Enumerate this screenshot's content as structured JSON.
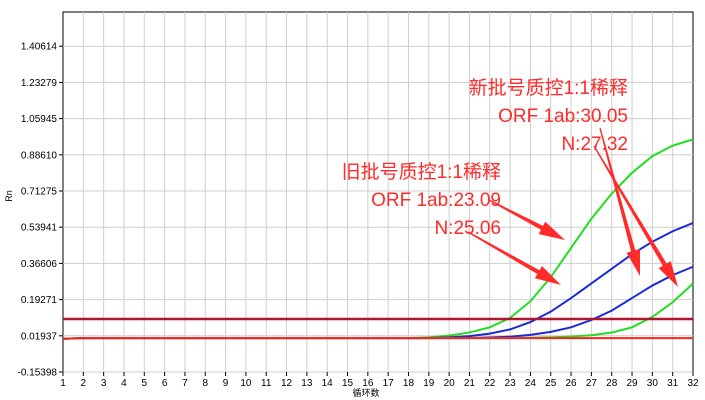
{
  "chart_data": {
    "type": "line",
    "title": "",
    "xlabel": "循环数",
    "ylabel": "Rn",
    "x": [
      1,
      2,
      3,
      4,
      5,
      6,
      7,
      8,
      9,
      10,
      11,
      12,
      13,
      14,
      15,
      16,
      17,
      18,
      19,
      20,
      21,
      22,
      23,
      24,
      25,
      26,
      27,
      28,
      29,
      30,
      31,
      32
    ],
    "xlim": [
      1,
      32
    ],
    "ylim": [
      -0.15398,
      1.57
    ],
    "y_ticks": [
      "-0.15398",
      "0.01937",
      "0.19271",
      "0.36606",
      "0.53941",
      "0.71275",
      "0.88610",
      "1.05945",
      "1.23279",
      "1.40614"
    ],
    "y_tick_values": [
      -0.15398,
      0.01937,
      0.19271,
      0.36606,
      0.53941,
      0.71275,
      0.8861,
      1.05945,
      1.23279,
      1.40614
    ],
    "grid": true,
    "series": [
      {
        "color": "#22dd22",
        "values": [
          0.005,
          0.008,
          0.008,
          0.008,
          0.008,
          0.008,
          0.008,
          0.008,
          0.008,
          0.008,
          0.008,
          0.008,
          0.008,
          0.008,
          0.008,
          0.008,
          0.008,
          0.009,
          0.012,
          0.02,
          0.035,
          0.06,
          0.105,
          0.185,
          0.3,
          0.44,
          0.58,
          0.7,
          0.8,
          0.88,
          0.93,
          0.96
        ]
      },
      {
        "color": "#1a2ad8",
        "values": [
          0.005,
          0.008,
          0.008,
          0.008,
          0.008,
          0.008,
          0.008,
          0.008,
          0.008,
          0.008,
          0.008,
          0.008,
          0.008,
          0.008,
          0.008,
          0.008,
          0.008,
          0.008,
          0.009,
          0.012,
          0.018,
          0.03,
          0.05,
          0.085,
          0.135,
          0.2,
          0.27,
          0.34,
          0.41,
          0.47,
          0.52,
          0.56
        ]
      },
      {
        "color": "#1a2ad8",
        "values": [
          0.005,
          0.008,
          0.008,
          0.008,
          0.008,
          0.008,
          0.008,
          0.008,
          0.008,
          0.008,
          0.008,
          0.008,
          0.008,
          0.008,
          0.008,
          0.008,
          0.008,
          0.008,
          0.008,
          0.008,
          0.009,
          0.011,
          0.015,
          0.024,
          0.038,
          0.06,
          0.095,
          0.14,
          0.2,
          0.26,
          0.31,
          0.35
        ]
      },
      {
        "color": "#22dd22",
        "values": [
          0.005,
          0.008,
          0.008,
          0.008,
          0.008,
          0.008,
          0.008,
          0.008,
          0.008,
          0.008,
          0.008,
          0.008,
          0.008,
          0.008,
          0.008,
          0.008,
          0.008,
          0.008,
          0.008,
          0.008,
          0.008,
          0.008,
          0.009,
          0.01,
          0.012,
          0.016,
          0.022,
          0.035,
          0.06,
          0.11,
          0.18,
          0.27
        ]
      },
      {
        "color": "#ff2020",
        "values": [
          0.005,
          0.008,
          0.008,
          0.008,
          0.008,
          0.008,
          0.008,
          0.008,
          0.008,
          0.008,
          0.008,
          0.008,
          0.008,
          0.008,
          0.008,
          0.008,
          0.008,
          0.008,
          0.008,
          0.008,
          0.008,
          0.008,
          0.008,
          0.008,
          0.008,
          0.008,
          0.008,
          0.008,
          0.008,
          0.008,
          0.008,
          0.008
        ]
      }
    ],
    "threshold": {
      "value": 0.1,
      "color": "#b01530"
    },
    "annotations": [
      {
        "lines": [
          "新批号质控1:1稀释",
          "ORF 1ab:30.05",
          "N:27.32"
        ],
        "color": "#ff2a2a"
      },
      {
        "lines": [
          "旧批号质控1:1稀释",
          "ORF 1ab:23.09",
          "N:25.06"
        ],
        "color": "#ff2a2a"
      }
    ]
  }
}
